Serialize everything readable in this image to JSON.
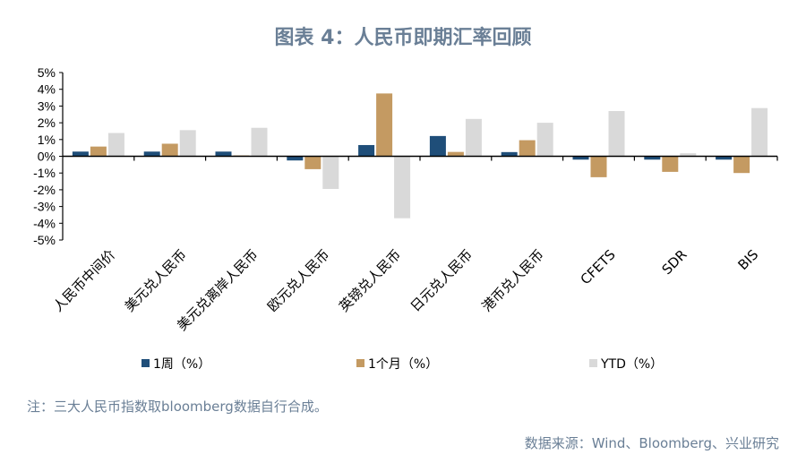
{
  "chart_data": {
    "type": "bar",
    "title": "图表 4：人民币即期汇率回顾",
    "categories": [
      "人民币中间价",
      "美元兑人民币",
      "美元兑离岸人民币",
      "欧元兑人民币",
      "英镑兑人民币",
      "日元兑人民币",
      "港币兑人民币",
      "CFETS",
      "SDR",
      "BIS"
    ],
    "series": [
      {
        "name": "1周（%）",
        "color": "#1f4e79",
        "values": [
          0.28,
          0.28,
          0.28,
          -0.25,
          0.67,
          1.21,
          0.25,
          -0.2,
          -0.2,
          -0.2
        ]
      },
      {
        "name": "1个月（%）",
        "color": "#c49a62",
        "values": [
          0.58,
          0.75,
          0.05,
          -0.77,
          3.75,
          0.26,
          0.96,
          -1.25,
          -0.93,
          -1.0
        ]
      },
      {
        "name": "YTD（%）",
        "color": "#d9d9d9",
        "values": [
          1.39,
          1.56,
          1.7,
          -1.95,
          -3.7,
          2.23,
          2.0,
          2.7,
          0.18,
          2.88
        ]
      }
    ],
    "ylim": [
      -5,
      5
    ],
    "yticks": [
      "5%",
      "4%",
      "3%",
      "2%",
      "1%",
      "0%",
      "-1%",
      "-2%",
      "-3%",
      "-4%",
      "-5%"
    ],
    "legend_position": "bottom",
    "grid": false
  },
  "note": "注：三大人民币指数取bloomberg数据自行合成。",
  "source": "数据来源：Wind、Bloomberg、兴业研究"
}
